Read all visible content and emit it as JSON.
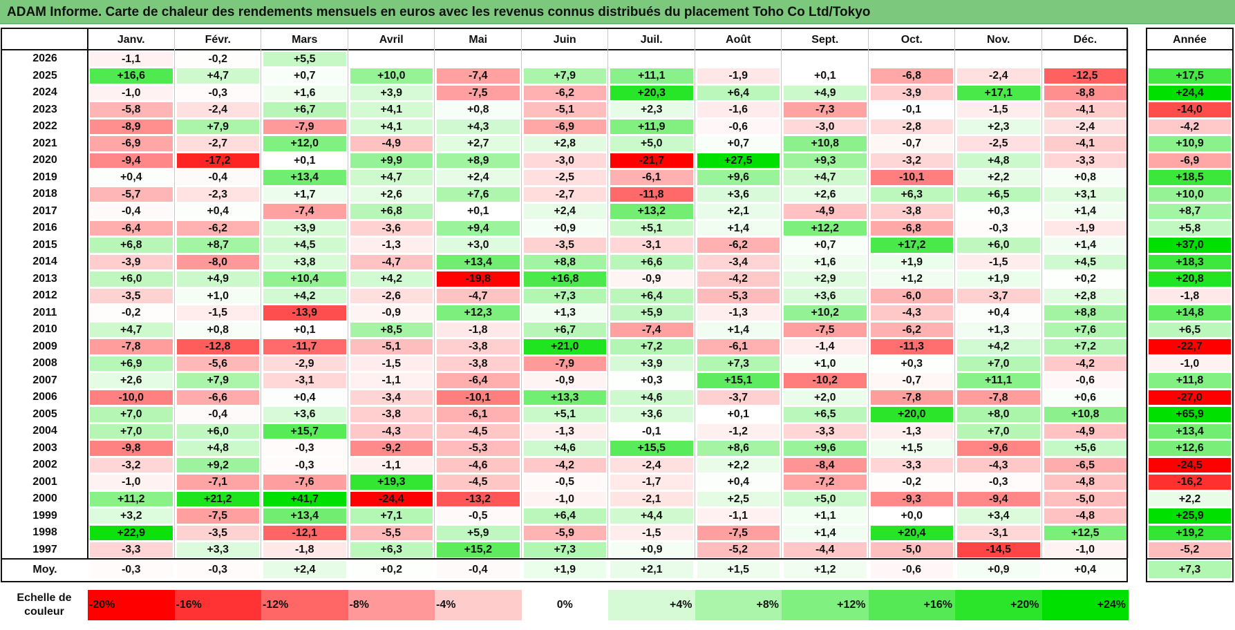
{
  "title": "ADAM Informe. Carte de chaleur des rendements mensuels en euros avec les revenus connus distribués du placement Toho Co Ltd/Tokyo",
  "chart_data": {
    "type": "heatmap",
    "title": "ADAM Informe. Carte de chaleur des rendements mensuels en euros avec les revenus connus distribués du placement Toho Co Ltd/Tokyo",
    "months": [
      "Janv.",
      "Févr.",
      "Mars",
      "Avril",
      "Mai",
      "Juin",
      "Juil.",
      "Août",
      "Sept.",
      "Oct.",
      "Nov.",
      "Déc."
    ],
    "year_col_label": "Année",
    "rows": [
      {
        "year": "2026",
        "values": [
          "-1,1",
          "-0,2",
          "+5,5",
          "",
          "",
          "",
          "",
          "",
          "",
          "",
          "",
          ""
        ],
        "annual": ""
      },
      {
        "year": "2025",
        "values": [
          "+16,6",
          "+4,7",
          "+0,7",
          "+10,0",
          "-7,4",
          "+7,9",
          "+11,1",
          "-1,9",
          "+0,1",
          "-6,8",
          "-2,4",
          "-12,5"
        ],
        "annual": "+17,5"
      },
      {
        "year": "2024",
        "values": [
          "-1,0",
          "-0,3",
          "+1,6",
          "+3,9",
          "-7,5",
          "-6,2",
          "+20,3",
          "+6,4",
          "+4,9",
          "-3,9",
          "+17,1",
          "-8,8"
        ],
        "annual": "+24,4"
      },
      {
        "year": "2023",
        "values": [
          "-5,8",
          "-2,4",
          "+6,7",
          "+4,1",
          "+0,8",
          "-5,1",
          "+2,3",
          "-1,6",
          "-7,3",
          "-0,1",
          "-1,5",
          "-4,1"
        ],
        "annual": "-14,0"
      },
      {
        "year": "2022",
        "values": [
          "-8,9",
          "+7,9",
          "-7,9",
          "+4,1",
          "+4,3",
          "-6,9",
          "+11,9",
          "-0,6",
          "-3,0",
          "-2,8",
          "+2,3",
          "-2,4"
        ],
        "annual": "-4,2"
      },
      {
        "year": "2021",
        "values": [
          "-6,9",
          "-2,7",
          "+12,0",
          "-4,9",
          "+2,7",
          "+2,8",
          "+5,0",
          "+0,7",
          "+10,8",
          "-0,7",
          "-2,5",
          "-4,1"
        ],
        "annual": "+10,9"
      },
      {
        "year": "2020",
        "values": [
          "-9,4",
          "-17,2",
          "+0,1",
          "+9,9",
          "+8,9",
          "-3,0",
          "-21,7",
          "+27,5",
          "+9,3",
          "-3,2",
          "+4,8",
          "-3,3"
        ],
        "annual": "-6,9"
      },
      {
        "year": "2019",
        "values": [
          "+0,4",
          "-0,4",
          "+13,4",
          "+4,7",
          "+2,4",
          "-2,5",
          "-6,1",
          "+9,6",
          "+4,7",
          "-10,1",
          "+2,2",
          "+0,8"
        ],
        "annual": "+18,5"
      },
      {
        "year": "2018",
        "values": [
          "-5,7",
          "-2,3",
          "+1,7",
          "+2,6",
          "+7,6",
          "-2,7",
          "-11,8",
          "+3,6",
          "+2,6",
          "+6,3",
          "+6,5",
          "+3,1"
        ],
        "annual": "+10,0"
      },
      {
        "year": "2017",
        "values": [
          "-0,4",
          "+0,4",
          "-7,4",
          "+6,8",
          "+0,1",
          "+2,4",
          "+13,2",
          "+2,1",
          "-4,9",
          "-3,8",
          "+0,3",
          "+1,4"
        ],
        "annual": "+8,7"
      },
      {
        "year": "2016",
        "values": [
          "-6,4",
          "-6,2",
          "+3,9",
          "-3,6",
          "+9,4",
          "+0,9",
          "+5,1",
          "+1,4",
          "+12,2",
          "-6,8",
          "-0,3",
          "-1,9"
        ],
        "annual": "+5,8"
      },
      {
        "year": "2015",
        "values": [
          "+6,8",
          "+8,7",
          "+4,5",
          "-1,3",
          "+3,0",
          "-3,5",
          "-3,1",
          "-6,2",
          "+0,7",
          "+17,2",
          "+6,0",
          "+1,4"
        ],
        "annual": "+37,0"
      },
      {
        "year": "2014",
        "values": [
          "-3,9",
          "-8,0",
          "+3,8",
          "-4,7",
          "+13,4",
          "+8,8",
          "+6,6",
          "-3,4",
          "+1,6",
          "+1,9",
          "-1,5",
          "+4,5"
        ],
        "annual": "+18,3"
      },
      {
        "year": "2013",
        "values": [
          "+6,0",
          "+4,9",
          "+10,4",
          "+4,2",
          "-19,8",
          "+16,8",
          "-0,9",
          "-4,2",
          "+2,9",
          "+1,2",
          "+1,9",
          "+0,2"
        ],
        "annual": "+20,8"
      },
      {
        "year": "2012",
        "values": [
          "-3,5",
          "+1,0",
          "+4,2",
          "-2,6",
          "-4,7",
          "+7,3",
          "+6,4",
          "-5,3",
          "+3,6",
          "-6,0",
          "-3,7",
          "+2,8"
        ],
        "annual": "-1,8"
      },
      {
        "year": "2011",
        "values": [
          "-0,2",
          "-1,5",
          "-13,9",
          "-0,9",
          "+12,3",
          "+1,3",
          "+5,9",
          "-1,3",
          "+10,2",
          "-4,3",
          "+0,4",
          "+8,8"
        ],
        "annual": "+14,8"
      },
      {
        "year": "2010",
        "values": [
          "+4,7",
          "+0,8",
          "+0,1",
          "+8,5",
          "-1,8",
          "+6,7",
          "-7,4",
          "+1,4",
          "-7,5",
          "-6,2",
          "+1,3",
          "+7,6"
        ],
        "annual": "+6,5"
      },
      {
        "year": "2009",
        "values": [
          "-7,8",
          "-12,8",
          "-11,7",
          "-5,1",
          "-3,8",
          "+21,0",
          "+7,2",
          "-6,1",
          "-1,4",
          "-11,3",
          "+4,2",
          "+7,2"
        ],
        "annual": "-22,7"
      },
      {
        "year": "2008",
        "values": [
          "+6,9",
          "-5,6",
          "-2,9",
          "-1,5",
          "-3,8",
          "-7,9",
          "+3,9",
          "+7,3",
          "+1,0",
          "+0,3",
          "+7,0",
          "-4,2"
        ],
        "annual": "-1,0"
      },
      {
        "year": "2007",
        "values": [
          "+2,6",
          "+7,9",
          "-3,1",
          "-1,1",
          "-6,4",
          "-0,9",
          "+0,3",
          "+15,1",
          "-10,2",
          "-0,7",
          "+11,1",
          "-0,6"
        ],
        "annual": "+11,8"
      },
      {
        "year": "2006",
        "values": [
          "-10,0",
          "-6,6",
          "+0,4",
          "-3,4",
          "-10,1",
          "+13,3",
          "+4,6",
          "-3,7",
          "+2,0",
          "-7,8",
          "-7,8",
          "+0,6"
        ],
        "annual": "-27,0"
      },
      {
        "year": "2005",
        "values": [
          "+7,0",
          "-0,4",
          "+3,6",
          "-3,8",
          "-6,1",
          "+5,1",
          "+3,6",
          "+0,1",
          "+6,5",
          "+20,0",
          "+8,0",
          "+10,8"
        ],
        "annual": "+65,9"
      },
      {
        "year": "2004",
        "values": [
          "+7,0",
          "+6,0",
          "+15,7",
          "-4,3",
          "-4,5",
          "-1,3",
          "-0,1",
          "-1,2",
          "-3,3",
          "-1,3",
          "+7,0",
          "-4,9"
        ],
        "annual": "+13,4"
      },
      {
        "year": "2003",
        "values": [
          "-9,8",
          "+4,8",
          "-0,3",
          "-9,2",
          "-5,3",
          "+4,6",
          "+15,5",
          "+8,6",
          "+9,6",
          "+1,5",
          "-9,6",
          "+5,6"
        ],
        "annual": "+12,6"
      },
      {
        "year": "2002",
        "values": [
          "-3,2",
          "+9,2",
          "-0,3",
          "-1,1",
          "-4,6",
          "-4,2",
          "-2,4",
          "+2,2",
          "-8,4",
          "-3,3",
          "-4,3",
          "-6,5"
        ],
        "annual": "-24,5"
      },
      {
        "year": "2001",
        "values": [
          "-1,0",
          "-7,1",
          "-7,6",
          "+19,3",
          "-4,5",
          "-0,5",
          "-1,7",
          "+0,4",
          "-7,2",
          "-0,2",
          "-0,3",
          "-4,8"
        ],
        "annual": "-16,2"
      },
      {
        "year": "2000",
        "values": [
          "+11,2",
          "+21,2",
          "+41,7",
          "-24,4",
          "-13,2",
          "-1,0",
          "-2,1",
          "+2,5",
          "+5,0",
          "-9,3",
          "-9,4",
          "-5,0"
        ],
        "annual": "+2,2"
      },
      {
        "year": "1999",
        "values": [
          "+3,2",
          "-7,5",
          "+13,4",
          "+7,1",
          "-0,5",
          "+6,4",
          "+4,4",
          "-1,1",
          "+1,1",
          "+0,0",
          "+3,4",
          "-4,8"
        ],
        "annual": "+25,9"
      },
      {
        "year": "1998",
        "values": [
          "+22,9",
          "-3,5",
          "-12,1",
          "-5,5",
          "+5,9",
          "-5,9",
          "-1,5",
          "-7,5",
          "+1,4",
          "+20,4",
          "-3,1",
          "+12,5"
        ],
        "annual": "+19,2"
      },
      {
        "year": "1997",
        "values": [
          "-3,3",
          "+3,3",
          "-1,8",
          "+6,3",
          "+15,2",
          "+7,3",
          "+0,9",
          "-5,2",
          "-4,4",
          "-5,0",
          "-14,5",
          "-1,0"
        ],
        "annual": "-5,2"
      }
    ],
    "average": {
      "label": "Moy.",
      "values": [
        "-0,3",
        "-0,3",
        "+2,4",
        "+0,2",
        "-0,4",
        "+1,9",
        "+2,1",
        "+1,5",
        "+1,2",
        "-0,6",
        "+0,9",
        "+0,4"
      ],
      "annual": "+7,3"
    },
    "legend": {
      "label": "Echelle de couleur",
      "stops": [
        "-20%",
        "-16%",
        "-12%",
        "-8%",
        "-4%",
        "0%",
        "+4%",
        "+8%",
        "+12%",
        "+16%",
        "+20%",
        "+24%"
      ]
    },
    "colors": {
      "red": "#ff0000",
      "white": "#ffffff",
      "green": "#00e000",
      "title_bg": "#7cc87c"
    }
  }
}
